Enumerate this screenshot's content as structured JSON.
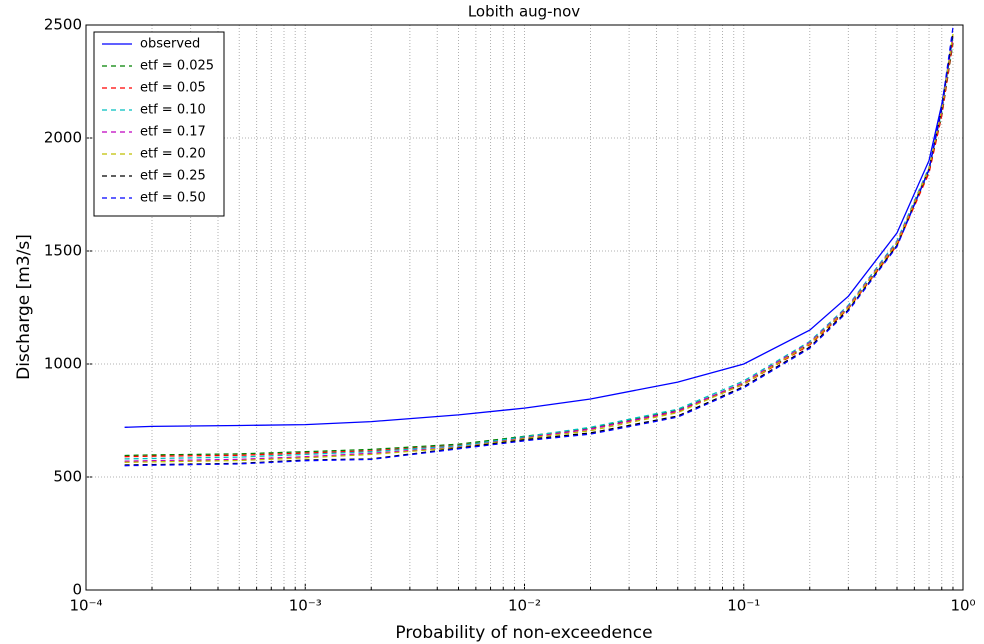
{
  "chart_data": {
    "type": "line",
    "title": "Lobith aug-nov",
    "xlabel": "Probability of non-exceedence",
    "ylabel": "Discharge [m3/s]",
    "xscale": "log",
    "grid": true,
    "legend": "upper left",
    "xlim": [
      0.0001,
      1
    ],
    "ylim": [
      0,
      2500
    ],
    "xticks": [
      {
        "value": 0.0001,
        "label": "10⁻⁴"
      },
      {
        "value": 0.001,
        "label": "10⁻³"
      },
      {
        "value": 0.01,
        "label": "10⁻²"
      },
      {
        "value": 0.1,
        "label": "10⁻¹"
      },
      {
        "value": 1,
        "label": "10⁰"
      }
    ],
    "yticks": [
      0,
      500,
      1000,
      1500,
      2000,
      2500
    ],
    "x": [
      0.00015,
      0.0002,
      0.0005,
      0.001,
      0.002,
      0.005,
      0.01,
      0.02,
      0.05,
      0.1,
      0.2,
      0.3,
      0.5,
      0.7,
      0.8,
      0.9
    ],
    "series": [
      {
        "name": "observed",
        "color": "#0000ff",
        "linestyle": "solid",
        "values": [
          720,
          724,
          728,
          732,
          745,
          775,
          805,
          845,
          920,
          1000,
          1150,
          1300,
          1580,
          1900,
          2150,
          2450
        ]
      },
      {
        "name": "etf = 0.025",
        "color": "#008000",
        "linestyle": "dashed",
        "values": [
          595,
          598,
          602,
          612,
          622,
          645,
          680,
          715,
          795,
          915,
          1090,
          1250,
          1530,
          1850,
          2100,
          2420
        ]
      },
      {
        "name": "etf = 0.05",
        "color": "#ff0000",
        "linestyle": "dashed",
        "values": [
          590,
          592,
          596,
          606,
          616,
          640,
          675,
          712,
          790,
          910,
          1085,
          1245,
          1525,
          1845,
          2100,
          2430
        ]
      },
      {
        "name": "etf = 0.10",
        "color": "#00bfbf",
        "linestyle": "dashed",
        "values": [
          580,
          582,
          588,
          600,
          612,
          638,
          678,
          720,
          800,
          925,
          1100,
          1260,
          1545,
          1870,
          2120,
          2450
        ]
      },
      {
        "name": "etf = 0.17",
        "color": "#bf00bf",
        "linestyle": "dashed",
        "values": [
          570,
          572,
          578,
          590,
          605,
          632,
          672,
          712,
          792,
          918,
          1095,
          1255,
          1540,
          1865,
          2120,
          2450
        ]
      },
      {
        "name": "etf = 0.20",
        "color": "#bfbf00",
        "linestyle": "dashed",
        "values": [
          565,
          567,
          573,
          585,
          600,
          630,
          670,
          705,
          785,
          912,
          1090,
          1250,
          1535,
          1865,
          2125,
          2460
        ]
      },
      {
        "name": "etf = 0.25",
        "color": "#000000",
        "linestyle": "dashed",
        "values": [
          553,
          555,
          560,
          575,
          580,
          628,
          665,
          695,
          770,
          900,
          1075,
          1240,
          1525,
          1860,
          2130,
          2470
        ]
      },
      {
        "name": "etf = 0.50",
        "color": "#0000ff",
        "linestyle": "dashed",
        "values": [
          550,
          552,
          558,
          572,
          578,
          625,
          660,
          690,
          765,
          895,
          1070,
          1235,
          1520,
          1860,
          2140,
          2490
        ]
      }
    ]
  }
}
